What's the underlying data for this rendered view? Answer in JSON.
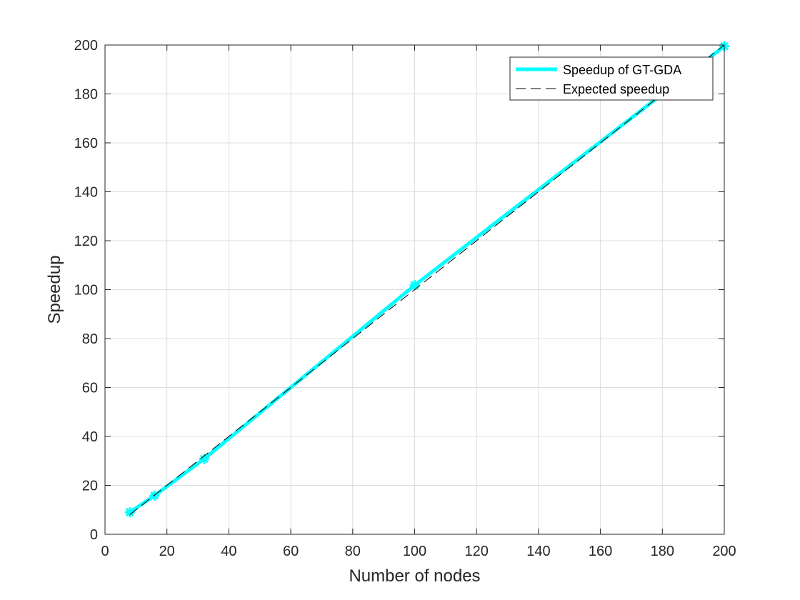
{
  "chart_data": {
    "type": "line",
    "title": "",
    "xlabel": "Number of nodes",
    "ylabel": "Speedup",
    "xlim": [
      0,
      200
    ],
    "ylim": [
      0,
      200
    ],
    "xticks": [
      0,
      20,
      40,
      60,
      80,
      100,
      120,
      140,
      160,
      180,
      200
    ],
    "yticks": [
      0,
      20,
      40,
      60,
      80,
      100,
      120,
      140,
      160,
      180,
      200
    ],
    "grid": true,
    "legend_position": "top-right",
    "series": [
      {
        "name": "Speedup of GT-GDA",
        "x": [
          8,
          16,
          32,
          100,
          200
        ],
        "y": [
          9,
          15.8,
          30.8,
          101.8,
          199.5
        ],
        "color": "#00ffff",
        "style": "solid",
        "marker": "asterisk"
      },
      {
        "name": "Expected speedup",
        "x": [
          8,
          16,
          32,
          100,
          200
        ],
        "y": [
          8,
          16,
          32,
          100,
          200
        ],
        "color": "#000000",
        "style": "dashed"
      }
    ]
  }
}
